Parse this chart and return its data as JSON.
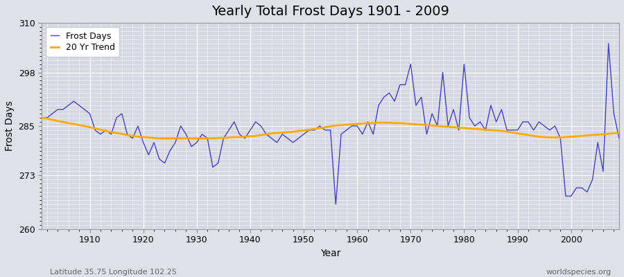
{
  "title": "Yearly Total Frost Days 1901 - 2009",
  "xlabel": "Year",
  "ylabel": "Frost Days",
  "subtitle": "Latitude 35.75 Longitude 102.25",
  "watermark": "worldspecies.org",
  "years": [
    1901,
    1902,
    1903,
    1904,
    1905,
    1906,
    1907,
    1908,
    1909,
    1910,
    1911,
    1912,
    1913,
    1914,
    1915,
    1916,
    1917,
    1918,
    1919,
    1920,
    1921,
    1922,
    1923,
    1924,
    1925,
    1926,
    1927,
    1928,
    1929,
    1930,
    1931,
    1932,
    1933,
    1934,
    1935,
    1936,
    1937,
    1938,
    1939,
    1940,
    1941,
    1942,
    1943,
    1944,
    1945,
    1946,
    1947,
    1948,
    1949,
    1950,
    1951,
    1952,
    1953,
    1954,
    1955,
    1956,
    1957,
    1958,
    1959,
    1960,
    1961,
    1962,
    1963,
    1964,
    1965,
    1966,
    1967,
    1968,
    1969,
    1970,
    1971,
    1972,
    1973,
    1974,
    1975,
    1976,
    1977,
    1978,
    1979,
    1980,
    1981,
    1982,
    1983,
    1984,
    1985,
    1986,
    1987,
    1988,
    1989,
    1990,
    1991,
    1992,
    1993,
    1994,
    1995,
    1996,
    1997,
    1998,
    1999,
    2000,
    2001,
    2002,
    2003,
    2004,
    2005,
    2006,
    2007,
    2008,
    2009
  ],
  "frost_days": [
    287,
    287,
    288,
    289,
    289,
    290,
    291,
    290,
    289,
    288,
    284,
    283,
    284,
    283,
    287,
    288,
    283,
    282,
    285,
    281,
    278,
    281,
    277,
    276,
    279,
    281,
    285,
    283,
    280,
    281,
    283,
    282,
    275,
    276,
    282,
    284,
    286,
    283,
    282,
    284,
    286,
    285,
    283,
    282,
    281,
    283,
    282,
    281,
    282,
    283,
    284,
    284,
    285,
    284,
    284,
    266,
    283,
    284,
    285,
    285,
    283,
    286,
    283,
    290,
    292,
    293,
    291,
    295,
    295,
    300,
    290,
    292,
    283,
    288,
    285,
    298,
    285,
    289,
    284,
    300,
    287,
    285,
    286,
    284,
    290,
    286,
    289,
    284,
    284,
    284,
    286,
    286,
    284,
    286,
    285,
    284,
    285,
    282,
    268,
    268,
    270,
    270,
    269,
    272,
    281,
    274,
    305,
    288,
    282
  ],
  "trend_values": [
    287.0,
    286.8,
    286.5,
    286.2,
    286.0,
    285.7,
    285.5,
    285.2,
    285.0,
    284.7,
    284.4,
    284.1,
    283.8,
    283.5,
    283.3,
    283.1,
    282.8,
    282.6,
    282.4,
    282.3,
    282.2,
    282.1,
    282.0,
    282.0,
    282.0,
    282.0,
    282.0,
    282.0,
    282.0,
    282.0,
    282.0,
    282.0,
    282.0,
    282.1,
    282.1,
    282.2,
    282.3,
    282.3,
    282.4,
    282.5,
    282.6,
    282.8,
    283.0,
    283.2,
    283.3,
    283.4,
    283.5,
    283.6,
    283.8,
    283.9,
    284.1,
    284.3,
    284.5,
    284.7,
    284.9,
    285.1,
    285.2,
    285.3,
    285.4,
    285.5,
    285.6,
    285.7,
    285.7,
    285.8,
    285.8,
    285.8,
    285.7,
    285.7,
    285.6,
    285.5,
    285.4,
    285.3,
    285.2,
    285.1,
    285.0,
    284.9,
    284.8,
    284.7,
    284.6,
    284.5,
    284.4,
    284.3,
    284.2,
    284.1,
    284.0,
    283.9,
    283.8,
    283.6,
    283.4,
    283.2,
    283.0,
    282.8,
    282.6,
    282.4,
    282.3,
    282.2,
    282.2,
    282.2,
    282.3,
    282.4,
    282.5,
    282.6,
    282.7,
    282.8,
    282.9,
    283.0,
    283.1,
    283.2,
    283.3
  ],
  "frost_color": "#4444bb",
  "trend_color": "#ffaa00",
  "bg_color": "#e0e0e8",
  "plot_bg_color": "#d8d8e4",
  "ylim": [
    260,
    310
  ],
  "yticks": [
    260,
    273,
    285,
    298,
    310
  ],
  "xlim_left": 1901,
  "xlim_right": 2009,
  "xticks": [
    1910,
    1920,
    1930,
    1940,
    1950,
    1960,
    1970,
    1980,
    1990,
    2000
  ],
  "grid_color": "#ffffff",
  "title_fontsize": 14,
  "label_fontsize": 10,
  "tick_fontsize": 9,
  "legend_fontsize": 9
}
